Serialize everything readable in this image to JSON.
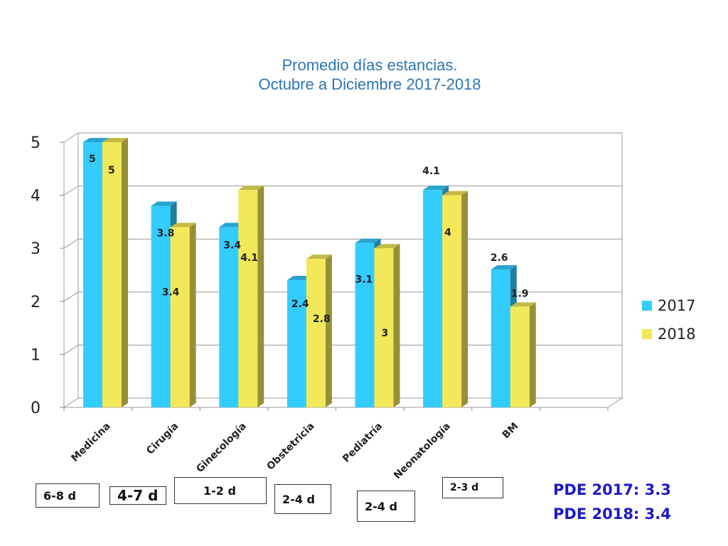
{
  "chart_data": {
    "type": "bar",
    "title": [
      "Promedio días estancias.",
      "Octubre a Diciembre 2017-2018"
    ],
    "categories": [
      "Medicina",
      "Cirugía",
      "Ginecología",
      "Obstetricia",
      "Pediatría",
      "Neonatología",
      "BM",
      ""
    ],
    "series": [
      {
        "name": "2017",
        "color": "#33CCFF",
        "values": [
          5,
          3.8,
          3.4,
          2.4,
          3.1,
          4.1,
          2.6,
          null
        ]
      },
      {
        "name": "2018",
        "color": "#F2E85A",
        "values": [
          5,
          3.4,
          4.1,
          2.8,
          3,
          4,
          1.9,
          null
        ]
      }
    ],
    "data_labels": {
      "2017": [
        "5",
        "3.8",
        "3.4",
        "2.4",
        "3.1",
        "4.1",
        "2.6"
      ],
      "2018": [
        "5",
        "3.4",
        "4.1",
        "2.8",
        "3",
        "4",
        "1.9"
      ]
    },
    "yticks": [
      "0",
      "1",
      "2",
      "3",
      "4",
      "5"
    ],
    "ylim": [
      0,
      5
    ],
    "grid": true,
    "legend_position": "right"
  },
  "ranges": [
    "6-8 d",
    "4-7 d",
    "1-2 d",
    "2-4 d",
    "2-4 d",
    "2-3 d"
  ],
  "pde": [
    "PDE 2017: 3.3",
    "PDE 2018: 3.4"
  ]
}
